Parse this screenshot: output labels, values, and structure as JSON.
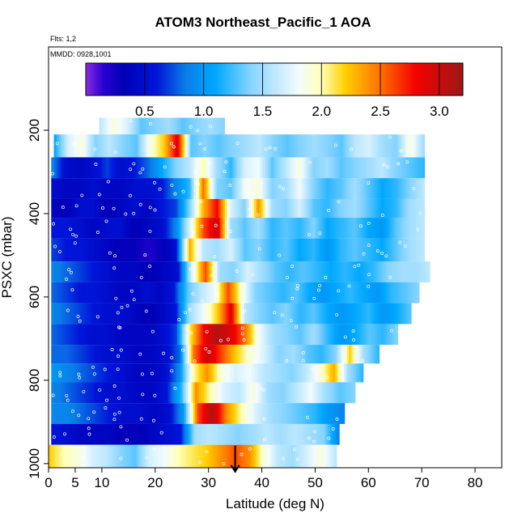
{
  "chart_data": {
    "type": "heatmap",
    "title": "ATOM3 Northeast_Pacific_1 AOA",
    "annotations": {
      "flights": "Flts: 1,2",
      "dates": "MMDD: 0928,1001"
    },
    "xlabel": "Latitude (deg N)",
    "ylabel": "PSXC (mbar)",
    "xlim": [
      0,
      85
    ],
    "ylim": [
      1010,
      0
    ],
    "x_ticks": [
      0,
      5,
      10,
      20,
      30,
      40,
      50,
      60,
      70,
      80
    ],
    "x_tick_labels": [
      "0",
      "5",
      "10",
      "20",
      "30",
      "40",
      "50",
      "60",
      "70",
      "80"
    ],
    "y_ticks": [
      200,
      400,
      600,
      800,
      1000
    ],
    "y_tick_labels": [
      "200",
      "400",
      "600",
      "800",
      "1000"
    ],
    "colorbar": {
      "range": [
        0,
        3.2
      ],
      "ticks": [
        0.5,
        1.0,
        1.5,
        2.0,
        2.5,
        3.0
      ],
      "tick_labels": [
        "0.5",
        "1.0",
        "1.5",
        "2.0",
        "2.5",
        "3.0"
      ]
    },
    "marker": {
      "latitude": 35,
      "pressure": 1000
    },
    "layers": [
      {
        "p_top": 170,
        "p_bot": 210,
        "lat_start": 9.5,
        "lat_end": 33,
        "values": [
          1.6,
          1.9,
          1.7,
          1.3,
          1.4,
          1.5,
          1.3,
          1.4,
          1.5,
          1.4
        ]
      },
      {
        "p_top": 210,
        "p_bot": 265,
        "lat_start": 1,
        "lat_end": 70.5,
        "values": [
          1.1,
          1.7,
          1.9,
          1.4,
          1.6,
          1.4,
          1.3,
          1.9,
          2.2,
          2.9,
          1.3,
          1.4,
          1.3,
          1.4,
          1.5,
          1.6,
          1.4,
          1.3,
          1.4,
          1.5,
          1.4,
          1.3,
          1.6,
          1.7,
          1.5,
          1.4,
          1.9,
          1.5
        ]
      },
      {
        "p_top": 265,
        "p_bot": 315,
        "lat_start": 0.5,
        "lat_end": 70.5,
        "values": [
          0.9,
          0.5,
          0.4,
          0.5,
          0.7,
          0.5,
          0.6,
          0.8,
          1.1,
          1.4,
          1.6,
          2.0,
          1.5,
          1.2,
          1.7,
          1.8,
          1.3,
          1.6,
          1.9,
          1.4,
          1.5,
          1.3,
          1.4,
          1.5,
          1.6,
          1.4,
          1.3,
          1.2
        ]
      },
      {
        "p_top": 315,
        "p_bot": 365,
        "lat_start": 0.5,
        "lat_end": 70.5,
        "values": [
          0.5,
          0.4,
          0.4,
          0.5,
          0.4,
          0.4,
          0.5,
          0.5,
          0.6,
          0.9,
          1.2,
          2.5,
          1.4,
          1.3,
          1.8,
          1.9,
          1.4,
          1.5,
          1.8,
          1.4,
          1.2,
          1.3,
          1.5,
          1.3,
          1.1,
          1.2,
          1.4,
          1.6
        ]
      },
      {
        "p_top": 365,
        "p_bot": 410,
        "lat_start": 0.5,
        "lat_end": 70.5,
        "values": [
          0.4,
          0.3,
          0.5,
          0.5,
          0.3,
          0.4,
          0.5,
          0.4,
          0.6,
          0.7,
          1.4,
          2.3,
          2.8,
          1.7,
          1.4,
          2.4,
          1.5,
          1.4,
          1.7,
          1.3,
          1.2,
          1.4,
          1.5,
          1.3,
          1.1,
          1.2,
          1.5,
          1.6
        ]
      },
      {
        "p_top": 410,
        "p_bot": 460,
        "lat_start": 0.5,
        "lat_end": 70.5,
        "values": [
          0.6,
          0.6,
          0.5,
          0.4,
          0.5,
          0.5,
          0.3,
          0.4,
          0.5,
          0.9,
          1.7,
          2.6,
          3.0,
          1.5,
          1.3,
          1.5,
          1.2,
          1.3,
          1.2,
          1.4,
          1.1,
          1.2,
          1.3,
          1.1,
          1.0,
          1.3,
          1.5,
          1.6
        ]
      },
      {
        "p_top": 460,
        "p_bot": 515,
        "lat_start": 0.5,
        "lat_end": 70.5,
        "values": [
          0.7,
          0.6,
          0.6,
          0.5,
          0.4,
          0.3,
          0.3,
          0.2,
          0.3,
          0.5,
          2.3,
          1.6,
          1.5,
          1.7,
          1.3,
          1.4,
          1.2,
          1.3,
          1.1,
          1.2,
          1.0,
          1.2,
          1.3,
          1.2,
          1.1,
          1.3,
          1.5,
          1.6
        ]
      },
      {
        "p_top": 515,
        "p_bot": 565,
        "lat_start": 0.5,
        "lat_end": 71.5,
        "values": [
          0.9,
          0.8,
          0.7,
          0.6,
          0.5,
          0.4,
          0.4,
          0.3,
          0.4,
          0.5,
          1.7,
          2.6,
          1.5,
          1.4,
          1.7,
          1.5,
          1.3,
          1.2,
          1.3,
          1.2,
          1.1,
          1.2,
          1.1,
          1.2,
          1.4,
          1.5,
          1.5,
          1.6
        ]
      },
      {
        "p_top": 565,
        "p_bot": 615,
        "lat_start": 0.5,
        "lat_end": 69.5,
        "values": [
          0.8,
          0.7,
          0.6,
          0.6,
          0.5,
          0.4,
          0.4,
          0.5,
          0.4,
          0.6,
          1.3,
          1.6,
          1.8,
          2.6,
          1.9,
          1.4,
          1.3,
          1.2,
          1.3,
          1.1,
          1.0,
          1.1,
          1.2,
          1.1,
          1.0,
          1.2,
          1.3,
          1.4
        ]
      },
      {
        "p_top": 615,
        "p_bot": 665,
        "lat_start": 0.5,
        "lat_end": 68,
        "values": [
          0.9,
          0.8,
          0.7,
          0.6,
          0.5,
          0.5,
          0.4,
          0.3,
          0.4,
          0.6,
          1.5,
          1.8,
          2.2,
          2.9,
          1.6,
          1.4,
          1.3,
          1.4,
          1.2,
          1.3,
          1.1,
          1.0,
          1.1,
          1.2,
          1.0,
          1.1,
          1.3
        ]
      },
      {
        "p_top": 665,
        "p_bot": 715,
        "lat_start": 0.5,
        "lat_end": 65.5,
        "values": [
          0.8,
          0.7,
          0.6,
          0.5,
          0.5,
          0.4,
          0.4,
          0.4,
          0.5,
          0.7,
          2.1,
          2.8,
          3.1,
          2.9,
          2.5,
          1.8,
          1.5,
          1.4,
          1.3,
          1.5,
          1.2,
          1.0,
          1.1,
          1.3,
          1.2,
          1.4
        ]
      },
      {
        "p_top": 715,
        "p_bot": 760,
        "lat_start": 0.5,
        "lat_end": 62,
        "values": [
          0.8,
          0.8,
          0.7,
          0.6,
          0.5,
          0.5,
          0.4,
          0.4,
          0.5,
          0.8,
          2.5,
          3.0,
          2.6,
          2.2,
          1.9,
          1.7,
          1.4,
          1.5,
          1.3,
          1.2,
          1.4,
          2.2,
          1.5,
          1.2
        ]
      },
      {
        "p_top": 760,
        "p_bot": 805,
        "lat_start": 0.5,
        "lat_end": 59,
        "values": [
          1.0,
          0.9,
          0.8,
          0.7,
          0.6,
          0.5,
          0.4,
          0.4,
          0.5,
          0.9,
          2.0,
          2.4,
          1.9,
          1.7,
          1.8,
          1.6,
          1.5,
          1.4,
          1.6,
          1.9,
          2.3,
          1.5,
          1.2
        ]
      },
      {
        "p_top": 805,
        "p_bot": 855,
        "lat_start": 0.5,
        "lat_end": 57.5,
        "values": [
          0.9,
          0.8,
          0.7,
          0.6,
          0.5,
          0.5,
          0.4,
          0.4,
          0.6,
          1.2,
          2.4,
          2.0,
          1.7,
          1.6,
          1.9,
          1.5,
          1.4,
          1.6,
          1.8,
          1.5,
          1.3,
          1.4
        ]
      },
      {
        "p_top": 855,
        "p_bot": 905,
        "lat_start": 0.5,
        "lat_end": 55.5,
        "values": [
          0.9,
          0.9,
          0.8,
          0.7,
          0.6,
          0.5,
          0.5,
          0.4,
          0.5,
          1.0,
          2.6,
          3.1,
          2.4,
          2.0,
          1.7,
          1.5,
          1.4,
          1.3,
          1.2,
          1.0,
          0.9
        ]
      },
      {
        "p_top": 905,
        "p_bot": 955,
        "lat_start": 0.5,
        "lat_end": 54.5,
        "values": [
          0.6,
          0.5,
          0.4,
          0.4,
          0.4,
          0.3,
          0.3,
          0.4,
          0.5,
          0.6,
          1.5,
          1.6,
          1.5,
          1.4,
          1.5,
          1.6,
          1.5,
          1.6,
          1.5,
          1.4,
          0.9
        ]
      },
      {
        "p_top": 955,
        "p_bot": 1010,
        "lat_start": 0,
        "lat_end": 54,
        "values": [
          2.2,
          2.0,
          1.9,
          1.7,
          1.6,
          1.4,
          1.3,
          1.7,
          1.8,
          2.0,
          2.1,
          2.2,
          2.4,
          2.6,
          2.4,
          1.9,
          1.6,
          1.5,
          1.7,
          1.9,
          1.6
        ]
      }
    ]
  }
}
